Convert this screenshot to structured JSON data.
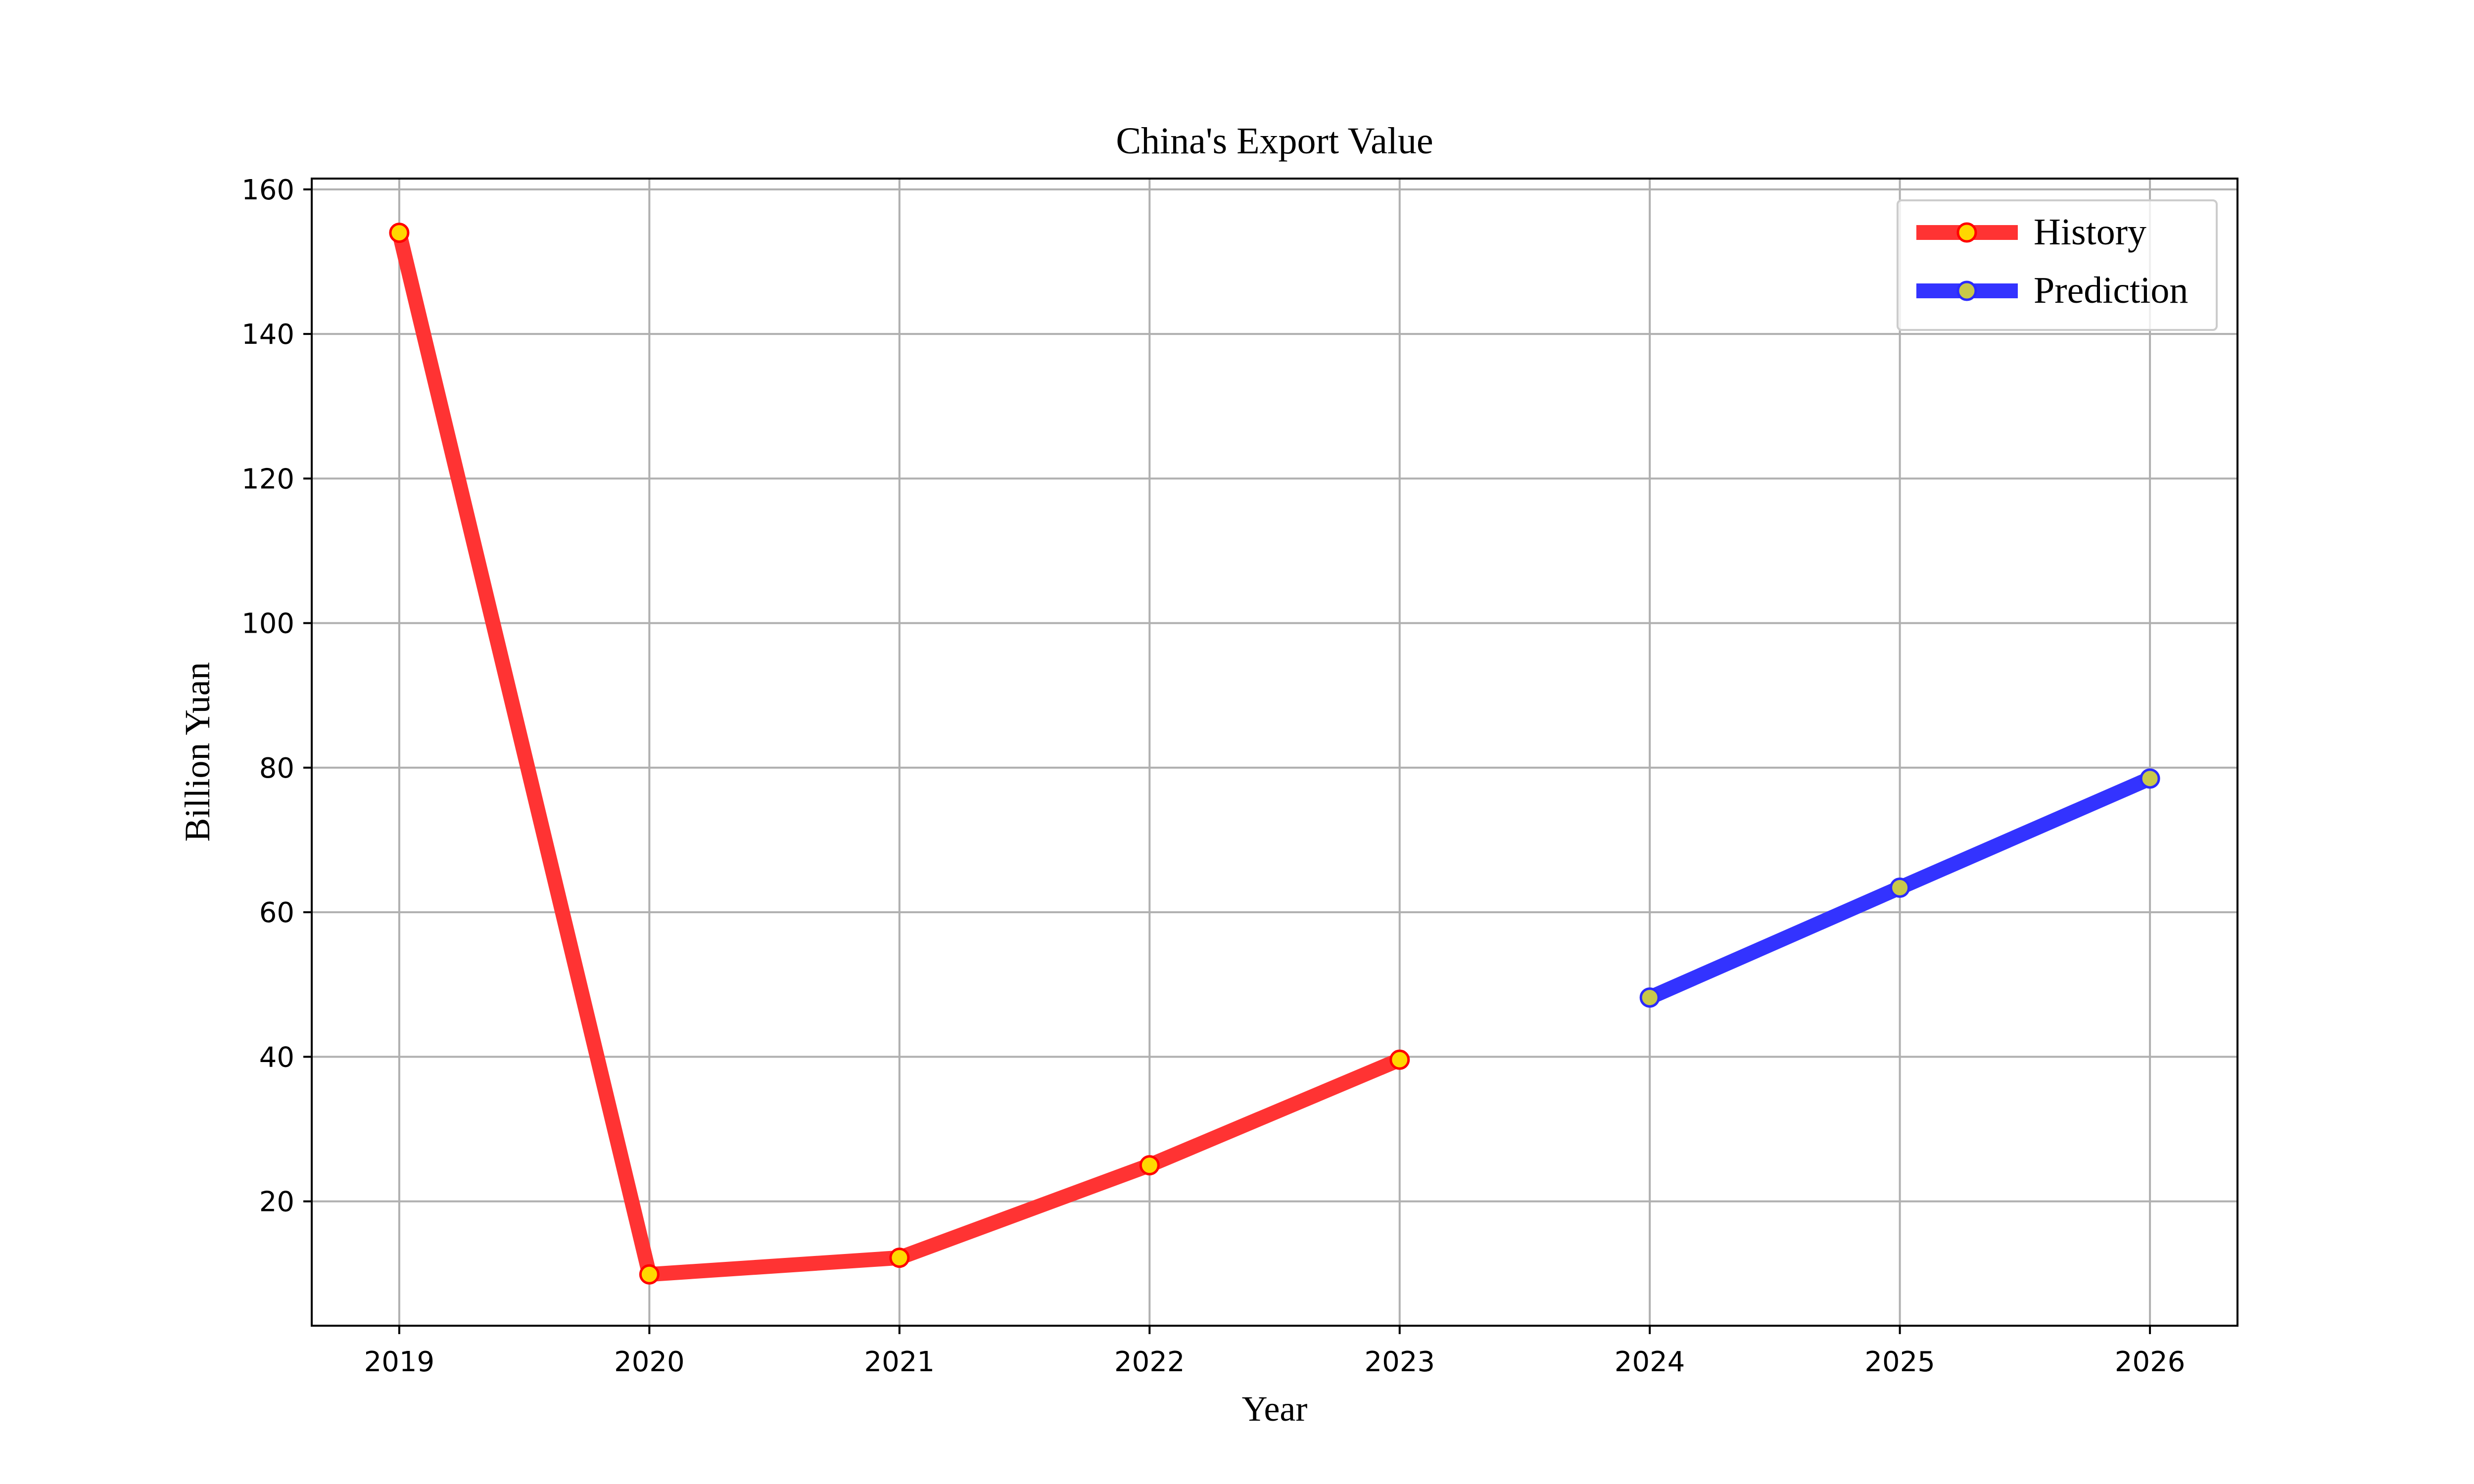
{
  "chart_data": {
    "type": "line",
    "title": "China's Export Value",
    "xlabel": "Year",
    "ylabel": "Billion Yuan",
    "x_ticks": [
      "2019",
      "2020",
      "2021",
      "2022",
      "2023",
      "2024",
      "2025",
      "2026"
    ],
    "y_ticks": [
      "20",
      "40",
      "60",
      "80",
      "100",
      "120",
      "140",
      "160"
    ],
    "xlim": [
      2018.65,
      2026.35
    ],
    "ylim": [
      2.8,
      161.5
    ],
    "grid": true,
    "legend_position": "top-right",
    "series": [
      {
        "name": "History",
        "color": "#ff3333",
        "marker_face": "#ffd700",
        "marker_edge": "#ff0000",
        "points": [
          [
            2019,
            154.0
          ],
          [
            2020,
            9.9
          ],
          [
            2021,
            12.2
          ],
          [
            2022,
            25.0
          ],
          [
            2023,
            39.6
          ]
        ]
      },
      {
        "name": "Prediction",
        "color": "#3333ff",
        "marker_face": "#c8c84a",
        "marker_edge": "#2a2aff",
        "points": [
          [
            2024,
            48.2
          ],
          [
            2025,
            63.4
          ],
          [
            2026,
            78.5
          ]
        ]
      }
    ]
  }
}
